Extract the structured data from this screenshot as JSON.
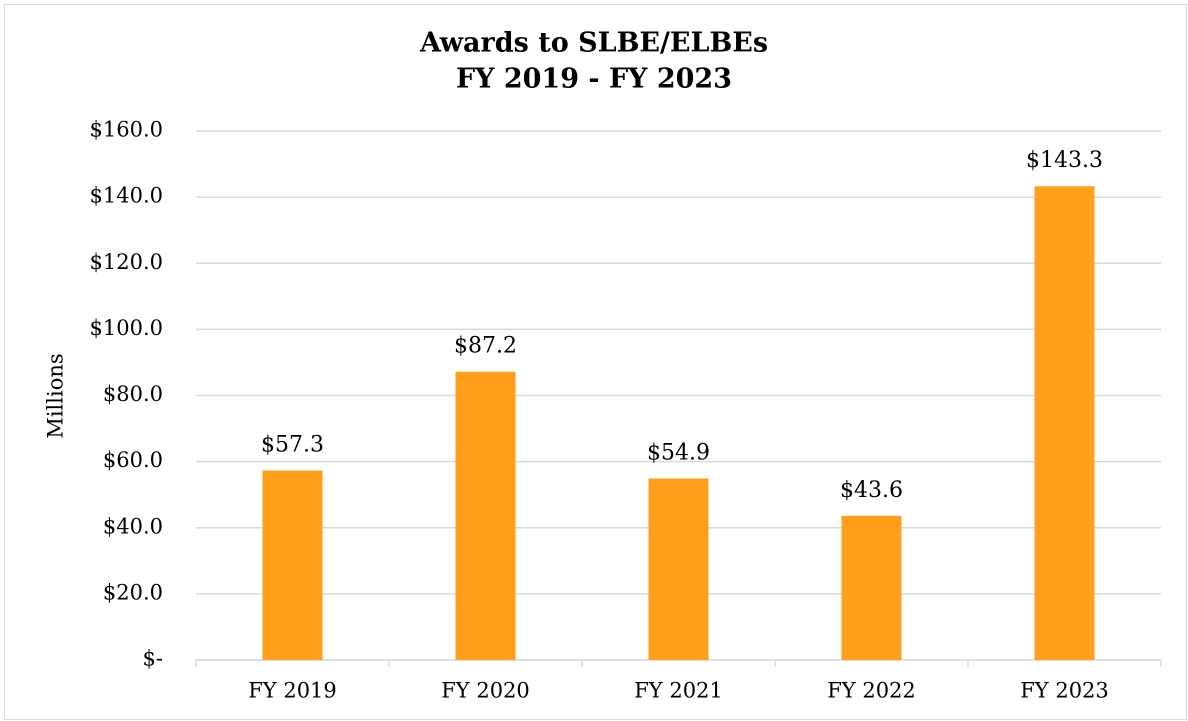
{
  "chart_data": {
    "type": "bar",
    "title": "Awards to SLBE/ELBEs",
    "subtitle": "FY 2019 - FY 2023",
    "ylabel": "Millions",
    "categories": [
      "FY 2019",
      "FY 2020",
      "FY 2021",
      "FY 2022",
      "FY 2023"
    ],
    "values": [
      57.3,
      87.2,
      54.9,
      43.6,
      143.3
    ],
    "value_labels": [
      "$57.3",
      "$87.2",
      "$54.9",
      "$43.6",
      "$143.3"
    ],
    "color": "#ff9f1c",
    "ylim": [
      0,
      160
    ],
    "yticks": [
      {
        "value": 0,
        "label": "$-"
      },
      {
        "value": 20,
        "label": "$20.0"
      },
      {
        "value": 40,
        "label": "$40.0"
      },
      {
        "value": 60,
        "label": "$60.0"
      },
      {
        "value": 80,
        "label": "$80.0"
      },
      {
        "value": 100,
        "label": "$100.0"
      },
      {
        "value": 120,
        "label": "$120.0"
      },
      {
        "value": 140,
        "label": "$140.0"
      },
      {
        "value": 160,
        "label": "$160.0"
      }
    ],
    "grid": true
  }
}
